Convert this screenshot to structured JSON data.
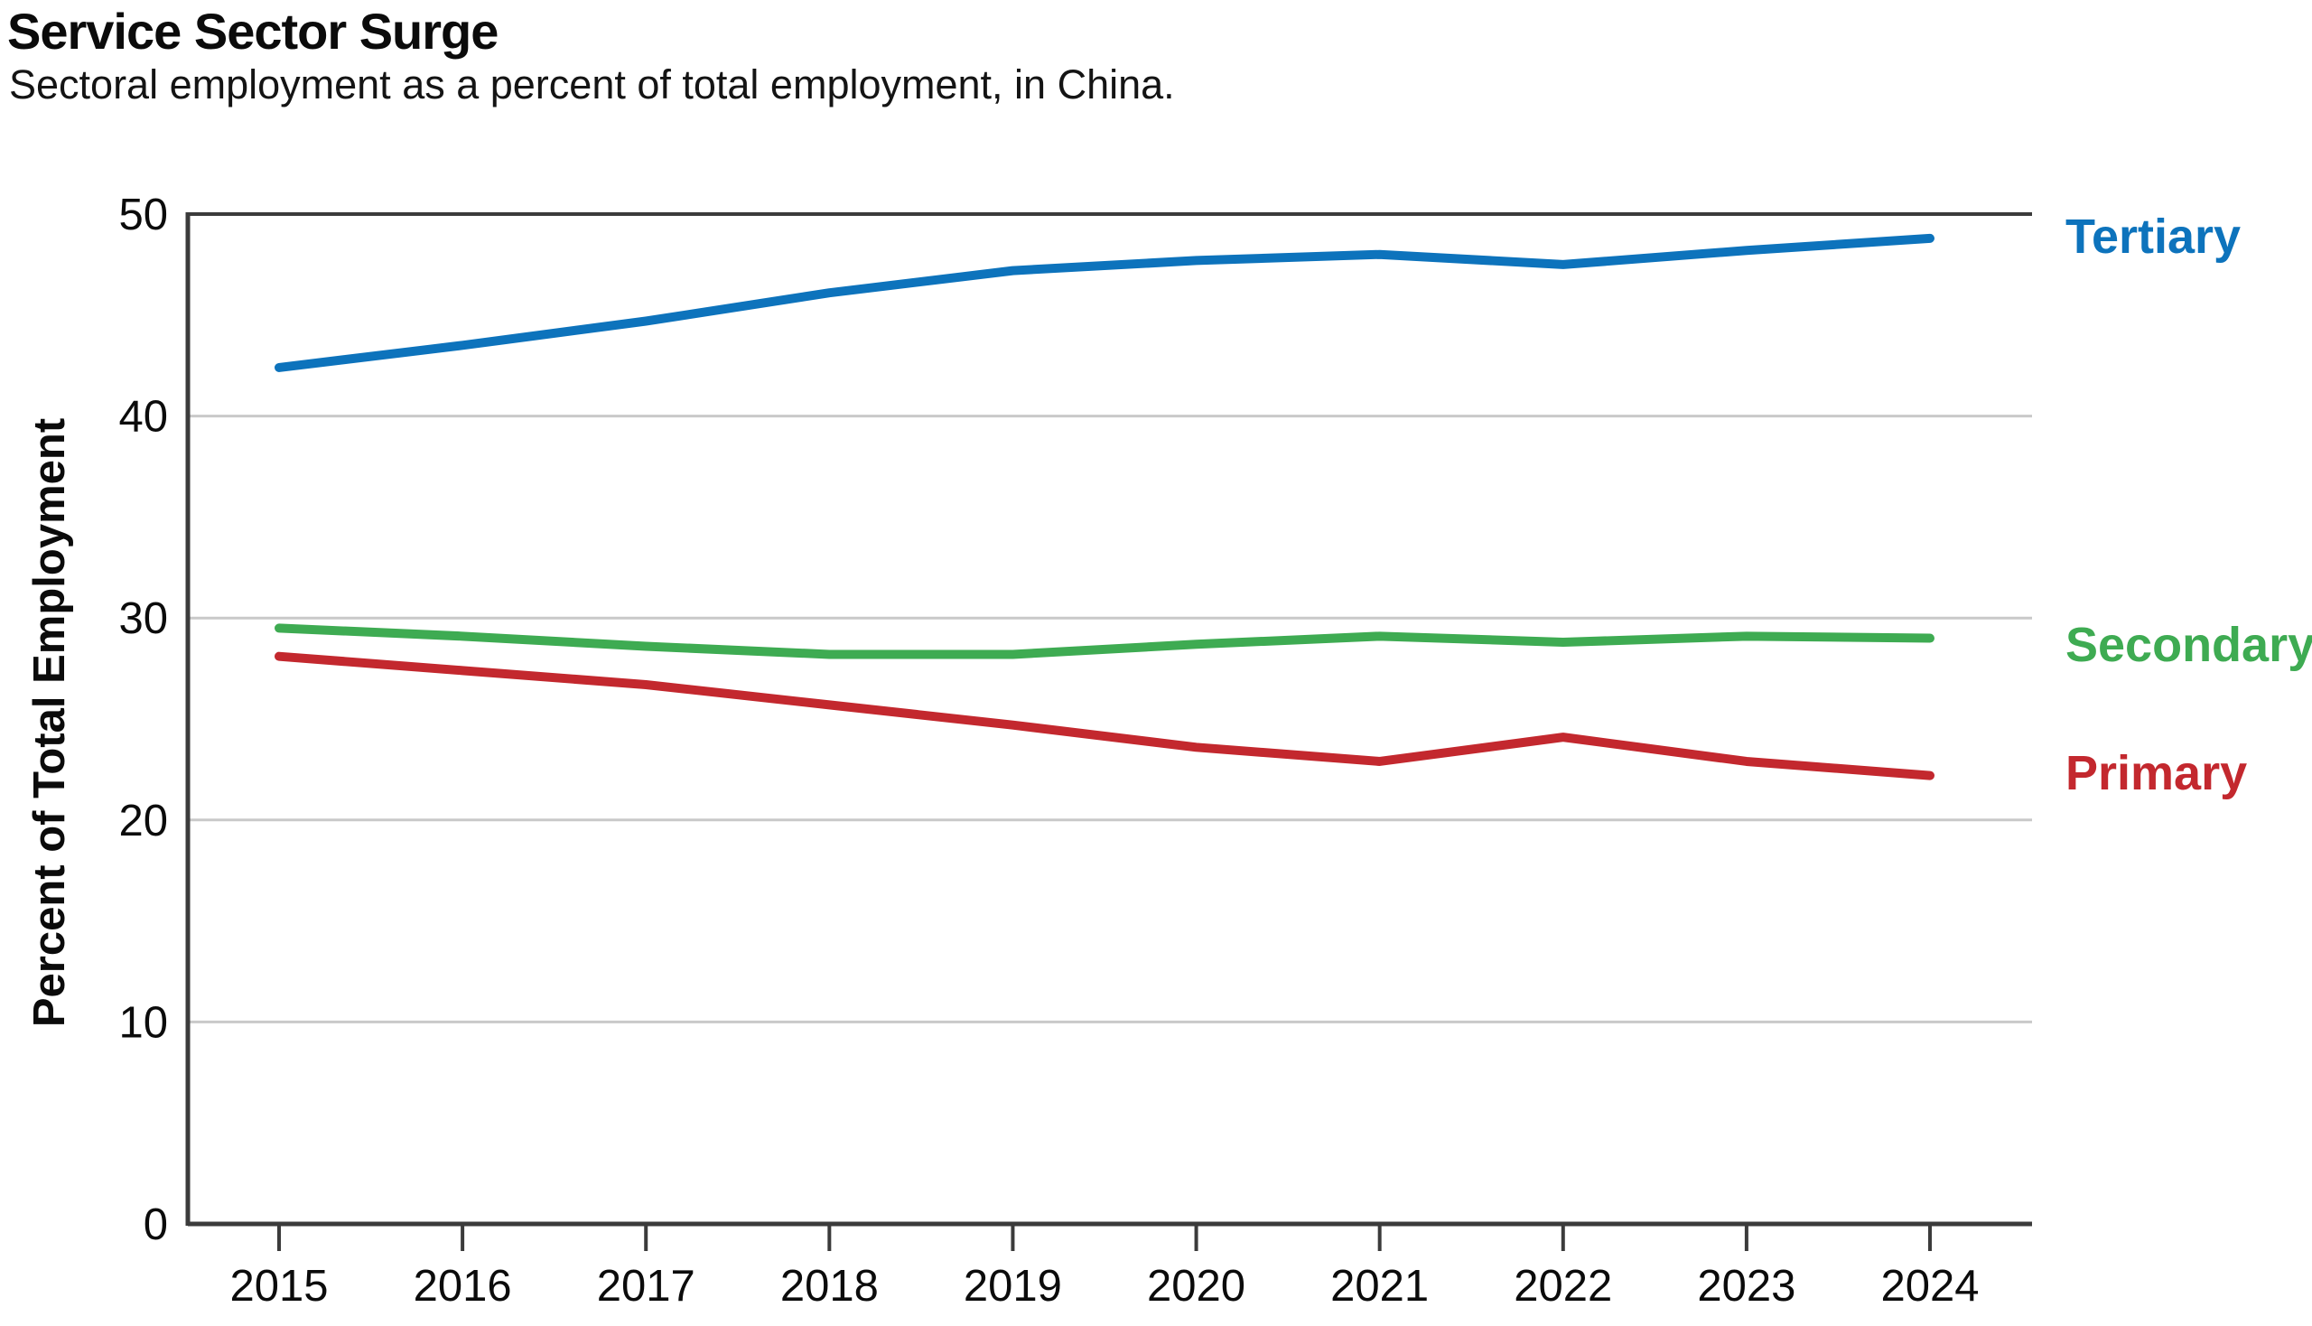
{
  "header": {
    "title": "Service Sector Surge",
    "subtitle": "Sectoral employment as a percent of total employment, in China."
  },
  "chart_data": {
    "type": "line",
    "title": "Service Sector Surge",
    "subtitle": "Sectoral employment as a percent of total employment, in China.",
    "xlabel": "",
    "ylabel": "Percent of Total Employment",
    "x": [
      2015,
      2016,
      2017,
      2018,
      2019,
      2020,
      2021,
      2022,
      2023,
      2024
    ],
    "x_tick_labels": [
      "2015",
      "2016",
      "2017",
      "2018",
      "2019",
      "2020",
      "2021",
      "2022",
      "2023",
      "2024"
    ],
    "ylim": [
      0,
      50
    ],
    "yticks": [
      0,
      10,
      20,
      30,
      40,
      50
    ],
    "y_tick_labels": [
      "0",
      "10",
      "20",
      "30",
      "40",
      "50"
    ],
    "grid": "horizontal-light",
    "legend_position": "right-edge-inline-labels",
    "series": [
      {
        "name": "Tertiary",
        "color": "#0d73bc",
        "values": [
          42.4,
          43.5,
          44.7,
          46.1,
          47.2,
          47.7,
          48.0,
          47.5,
          48.2,
          48.8
        ]
      },
      {
        "name": "Secondary",
        "color": "#3eab52",
        "values": [
          29.5,
          29.1,
          28.6,
          28.2,
          28.2,
          28.7,
          29.1,
          28.8,
          29.1,
          29.0
        ]
      },
      {
        "name": "Primary",
        "color": "#c3282e",
        "values": [
          28.1,
          27.4,
          26.7,
          25.7,
          24.7,
          23.6,
          22.9,
          24.1,
          22.9,
          22.2
        ]
      }
    ],
    "colors": {
      "axis": "#3b3b3b",
      "gridline": "#c9c9c9",
      "text": "#0b0b0b"
    }
  }
}
